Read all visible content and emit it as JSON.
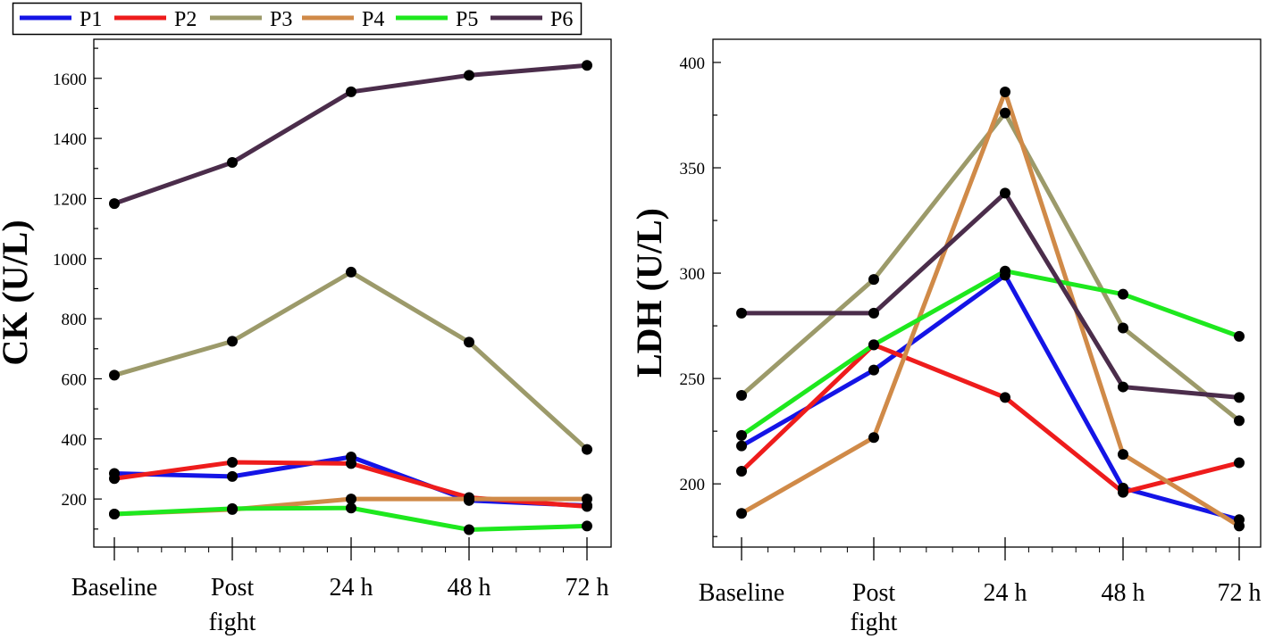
{
  "legend": {
    "entries": [
      {
        "name": "P1",
        "color": "#1414e6"
      },
      {
        "name": "P2",
        "color": "#ee1c1c"
      },
      {
        "name": "P3",
        "color": "#9c9a6a"
      },
      {
        "name": "P4",
        "color": "#d08a48"
      },
      {
        "name": "P5",
        "color": "#1ee81e"
      },
      {
        "name": "P6",
        "color": "#4b2d4b"
      }
    ]
  },
  "chart_data": [
    {
      "type": "line",
      "title": "",
      "xlabel": "",
      "ylabel": "CK (U/L)",
      "categories": [
        [
          "Baseline"
        ],
        [
          "Post",
          "fight"
        ],
        [
          "24 h"
        ],
        [
          "48 h"
        ],
        [
          "72 h"
        ]
      ],
      "yticks": [
        200,
        400,
        600,
        800,
        1000,
        1200,
        1400,
        1600
      ],
      "ylim": [
        40,
        1730
      ],
      "series": [
        {
          "name": "P1",
          "values": [
            285,
            275,
            340,
            195,
            178
          ]
        },
        {
          "name": "P2",
          "values": [
            268,
            322,
            318,
            205,
            175
          ]
        },
        {
          "name": "P3",
          "values": [
            612,
            725,
            955,
            722,
            365
          ]
        },
        {
          "name": "P4",
          "values": [
            150,
            165,
            200,
            200,
            200
          ]
        },
        {
          "name": "P5",
          "values": [
            150,
            168,
            170,
            98,
            110
          ]
        },
        {
          "name": "P6",
          "values": [
            1183,
            1320,
            1555,
            1610,
            1643
          ]
        }
      ]
    },
    {
      "type": "line",
      "title": "",
      "xlabel": "",
      "ylabel": "LDH (U/L)",
      "categories": [
        [
          "Baseline"
        ],
        [
          "Post",
          "fight"
        ],
        [
          "24 h"
        ],
        [
          "48 h"
        ],
        [
          "72 h"
        ]
      ],
      "yticks": [
        200,
        250,
        300,
        350,
        400
      ],
      "ylim": [
        170,
        411
      ],
      "series": [
        {
          "name": "P1",
          "values": [
            218,
            254,
            299,
            198,
            183
          ]
        },
        {
          "name": "P2",
          "values": [
            206,
            266,
            241,
            196,
            210
          ]
        },
        {
          "name": "P3",
          "values": [
            242,
            297,
            376,
            274,
            230
          ]
        },
        {
          "name": "P4",
          "values": [
            186,
            222,
            386,
            214,
            180
          ]
        },
        {
          "name": "P5",
          "values": [
            223,
            266,
            301,
            290,
            270
          ]
        },
        {
          "name": "P6",
          "values": [
            281,
            281,
            338,
            246,
            241
          ]
        }
      ]
    }
  ]
}
